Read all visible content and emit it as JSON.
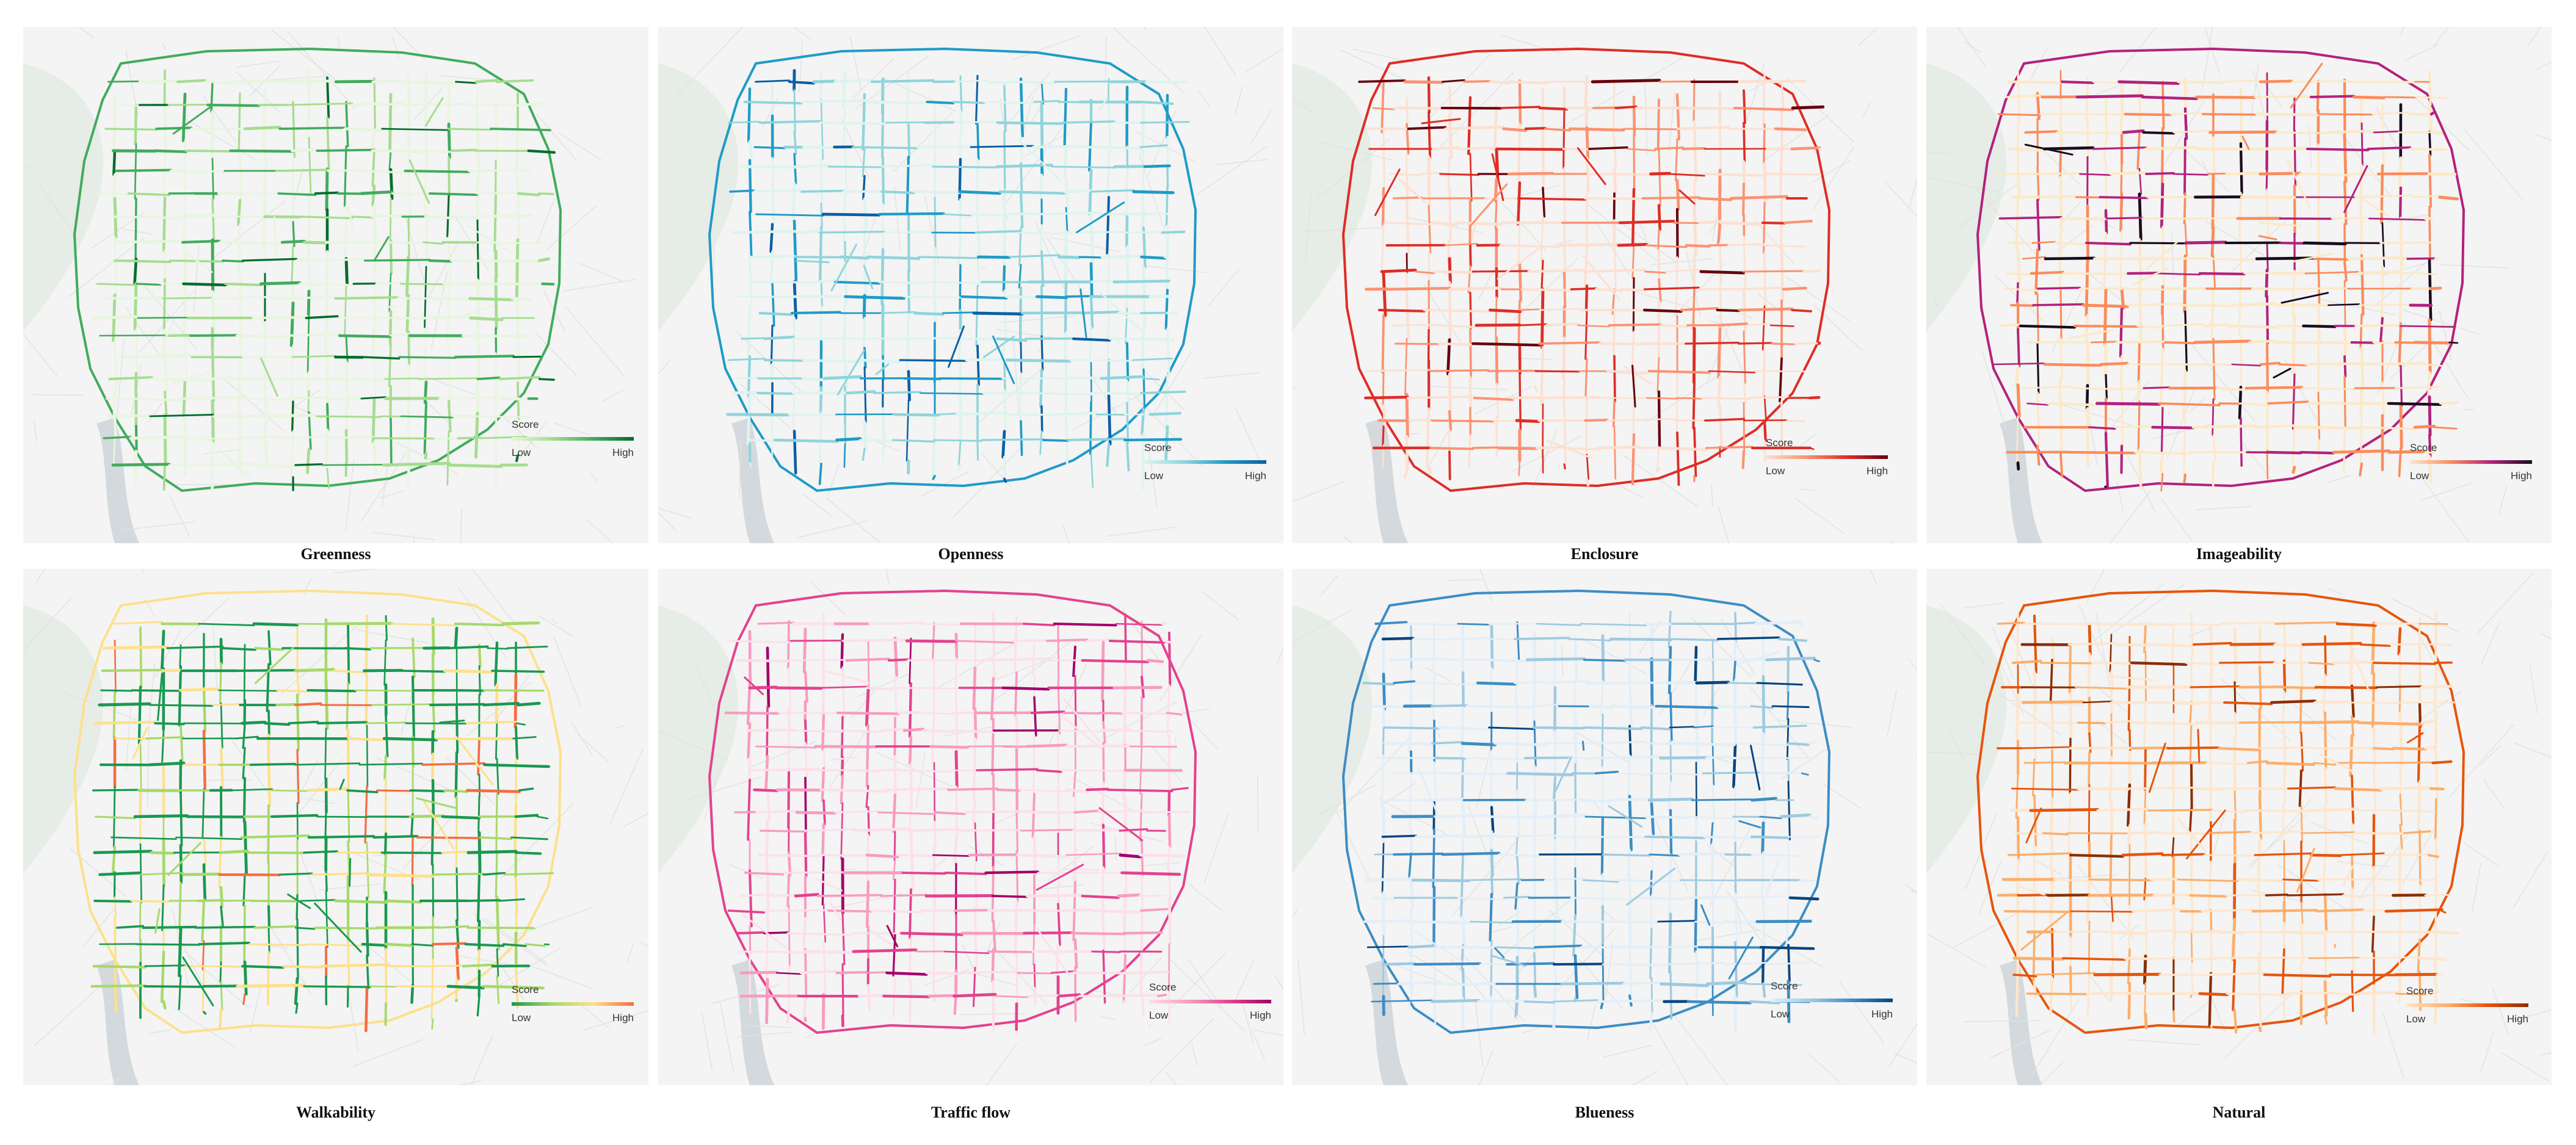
{
  "panels": [
    {
      "title": "Greenness",
      "legend": {
        "title": "Score",
        "low": "Low",
        "high": "High"
      },
      "ramp": [
        "#e8f5e0",
        "#a6dc8f",
        "#41ab5d",
        "#006d2c"
      ],
      "colormap": "greens"
    },
    {
      "title": "Openness",
      "legend": {
        "title": "Score",
        "low": "Low",
        "high": "High"
      },
      "ramp": [
        "#dff3ee",
        "#8fd4dc",
        "#1f9bc7",
        "#0b5fa5"
      ],
      "colormap": "teal-blue"
    },
    {
      "title": "Enclosure",
      "legend": {
        "title": "Score",
        "low": "Low",
        "high": "High"
      },
      "ramp": [
        "#fde0d2",
        "#fc9272",
        "#de2d26",
        "#67000d"
      ],
      "colormap": "reds"
    },
    {
      "title": "Imageability",
      "legend": {
        "title": "Score",
        "low": "Low",
        "high": "High"
      },
      "ramp": [
        "#fde8c8",
        "#fb8c5c",
        "#b3227d",
        "#1a0b1e"
      ],
      "colormap": "magma"
    },
    {
      "title": "Walkability",
      "legend": {
        "title": "Score",
        "low": "Low",
        "high": "High"
      },
      "ramp": [
        "#1a9850",
        "#a6d96a",
        "#fee08b",
        "#f46d43"
      ],
      "colormap": "green-yellow-red"
    },
    {
      "title": "Traffic flow",
      "legend": {
        "title": "Score",
        "low": "Low",
        "high": "High"
      },
      "ramp": [
        "#fde0ea",
        "#f99bc0",
        "#e3428f",
        "#a3006b"
      ],
      "colormap": "pinks"
    },
    {
      "title": "Blueness",
      "legend": {
        "title": "Score",
        "low": "Low",
        "high": "High"
      },
      "ramp": [
        "#e3eef8",
        "#9ecae1",
        "#3d8dc4",
        "#08457e"
      ],
      "colormap": "blues"
    },
    {
      "title": "Natural",
      "legend": {
        "title": "Score",
        "low": "Low",
        "high": "High"
      },
      "ramp": [
        "#fee6ce",
        "#fdae6b",
        "#e6550d",
        "#8c2d04"
      ],
      "colormap": "oranges"
    }
  ]
}
